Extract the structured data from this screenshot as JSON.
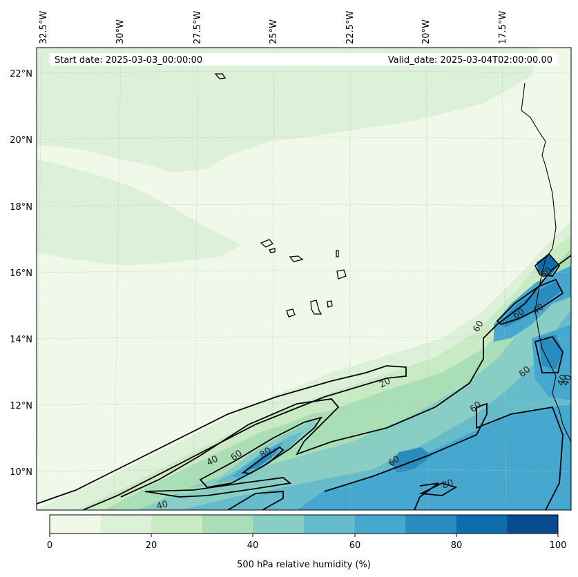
{
  "header": {
    "start_date": "Start date: 2025-03-03_00:00:00",
    "valid_date": "Valid_date: 2025-03-04T02:00:00.00"
  },
  "map": {
    "lon_labels": [
      "32.5°W",
      "30°W",
      "27.5°W",
      "25°W",
      "22.5°W",
      "20°W",
      "17.5°W"
    ],
    "lat_labels": [
      "22°N",
      "20°N",
      "18°N",
      "16°N",
      "14°N",
      "12°N",
      "10°N"
    ],
    "contour_labels": [
      "80",
      "60",
      "40",
      "60",
      "40",
      "20",
      "60",
      "60",
      "80",
      "40",
      "60",
      "80",
      "60",
      "40",
      "40"
    ]
  },
  "colorbar": {
    "label": "500 hPa relative humidity (%)",
    "ticks": [
      "0",
      "20",
      "40",
      "60",
      "80",
      "100"
    ],
    "colors": [
      "#f0f9e9",
      "#ddf1d8",
      "#c9eac3",
      "#aadeb6",
      "#88cec5",
      "#66bccb",
      "#47a8cf",
      "#2a8bbe",
      "#0f6dad",
      "#084b8e"
    ]
  }
}
